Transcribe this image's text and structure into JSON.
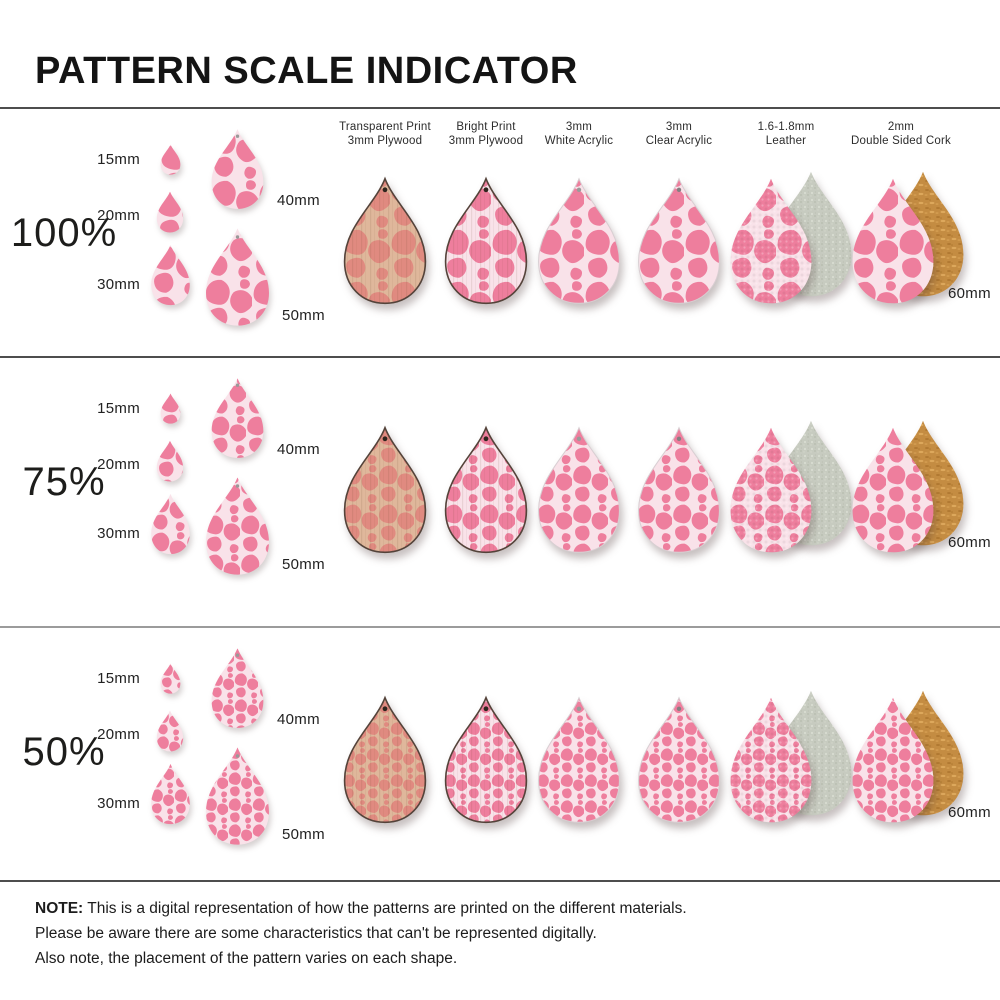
{
  "title": "PATTERN SCALE INDICATOR",
  "rows": [
    {
      "scale_label": "100%",
      "scale": 1
    },
    {
      "scale_label": "75%",
      "scale": 0.75
    },
    {
      "scale_label": "50%",
      "scale": 0.5
    }
  ],
  "reference_sizes": [
    {
      "label": "15mm",
      "mm": 15
    },
    {
      "label": "20mm",
      "mm": 20
    },
    {
      "label": "30mm",
      "mm": 30
    }
  ],
  "large_sizes": [
    {
      "label": "40mm",
      "mm": 40
    },
    {
      "label": "50mm",
      "mm": 50
    }
  ],
  "material_size_label": "60mm",
  "materials": [
    {
      "key": "transparent-plywood",
      "line1": "Transparent Print",
      "line2": "3mm Plywood"
    },
    {
      "key": "bright-plywood",
      "line1": "Bright Print",
      "line2": "3mm Plywood"
    },
    {
      "key": "white-acrylic",
      "line1": "3mm",
      "line2": "White Acrylic"
    },
    {
      "key": "clear-acrylic",
      "line1": "3mm",
      "line2": "Clear Acrylic"
    },
    {
      "key": "leather",
      "line1": "1.6-1.8mm",
      "line2": "Leather"
    },
    {
      "key": "cork",
      "line1": "2mm",
      "line2": "Double Sided Cork"
    }
  ],
  "note": {
    "label": "NOTE:",
    "line1": "This is a digital representation of how the patterns are printed on the different materials.",
    "line2": "Please be aware there are some characteristics that can't be represented digitally.",
    "line3": "Also note, the placement of the pattern varies on each shape."
  },
  "colors": {
    "spot_pink": "#ee7e9d",
    "bg_pink": "#f9e2e9",
    "wood_bg": "#dfb79b",
    "wood_spot": "#e08a80",
    "plywood_edge": "#54433a",
    "suede": "#c7cbc0",
    "cork": "#c48c42",
    "text": "#1d1d1b",
    "divider": "#4e4e4e"
  }
}
